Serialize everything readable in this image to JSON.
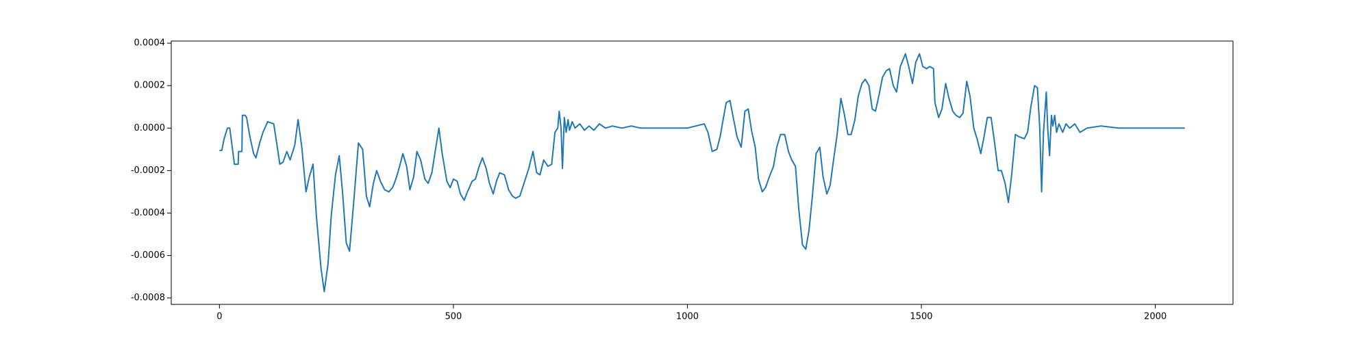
{
  "chart_data": {
    "type": "line",
    "x": [
      0,
      5,
      10,
      17,
      22,
      25,
      32,
      40,
      41,
      48,
      49,
      55,
      58,
      65,
      73,
      78,
      86,
      93,
      103,
      116,
      123,
      129,
      136,
      144,
      151,
      161,
      168,
      176,
      185,
      192,
      200,
      207,
      217,
      224,
      232,
      239,
      248,
      256,
      263,
      271,
      278,
      288,
      297,
      306,
      314,
      321,
      329,
      336,
      344,
      353,
      362,
      370,
      377,
      385,
      392,
      400,
      407,
      415,
      422,
      430,
      439,
      446,
      454,
      461,
      469,
      476,
      486,
      493,
      500,
      508,
      515,
      523,
      530,
      540,
      547,
      555,
      562,
      570,
      577,
      585,
      592,
      599,
      609,
      618,
      626,
      633,
      642,
      661,
      670,
      678,
      685,
      693,
      702,
      710,
      717,
      723,
      726,
      730,
      733,
      737,
      741,
      745,
      748,
      754,
      760,
      770,
      780,
      790,
      800,
      812,
      825,
      840,
      860,
      880,
      900,
      1000,
      1036,
      1044,
      1053,
      1063,
      1070,
      1078,
      1083,
      1091,
      1098,
      1106,
      1115,
      1123,
      1130,
      1137,
      1145,
      1152,
      1160,
      1167,
      1175,
      1184,
      1191,
      1199,
      1208,
      1216,
      1223,
      1231,
      1238,
      1246,
      1253,
      1260,
      1268,
      1275,
      1283,
      1290,
      1298,
      1305,
      1313,
      1320,
      1328,
      1335,
      1343,
      1350,
      1358,
      1365,
      1373,
      1380,
      1388,
      1395,
      1402,
      1410,
      1417,
      1425,
      1432,
      1440,
      1447,
      1455,
      1466,
      1473,
      1481,
      1488,
      1496,
      1503,
      1511,
      1518,
      1526,
      1529,
      1537,
      1544,
      1552,
      1559,
      1567,
      1574,
      1582,
      1589,
      1597,
      1604,
      1612,
      1619,
      1627,
      1634,
      1641,
      1649,
      1656,
      1664,
      1671,
      1679,
      1686,
      1693,
      1701,
      1708,
      1720,
      1727,
      1734,
      1742,
      1748,
      1753,
      1757,
      1761,
      1767,
      1770,
      1774,
      1778,
      1781,
      1785,
      1789,
      1794,
      1802,
      1809,
      1817,
      1828,
      1839,
      1854,
      1884,
      1921,
      2063
    ],
    "series": [
      {
        "color": "#1f77b4",
        "values": [
          -0.000105,
          -0.000105,
          -5e-05,
          0,
          0,
          -5e-05,
          -0.00017,
          -0.00017,
          -0.00011,
          -0.00011,
          6e-05,
          6e-05,
          5e-05,
          -4e-05,
          -0.00012,
          -0.00014,
          -7e-05,
          -2e-05,
          3e-05,
          2e-05,
          -8e-05,
          -0.00017,
          -0.00016,
          -0.00011,
          -0.00015,
          -8e-05,
          4e-05,
          -9e-05,
          -0.0003,
          -0.00023,
          -0.00017,
          -0.00041,
          -0.00066,
          -0.00077,
          -0.00064,
          -0.00041,
          -0.00022,
          -0.00013,
          -0.0003,
          -0.00054,
          -0.00058,
          -0.00032,
          -7e-05,
          -0.0001,
          -0.00032,
          -0.00037,
          -0.00026,
          -0.0002,
          -0.00025,
          -0.00029,
          -0.0003,
          -0.00028,
          -0.00024,
          -0.00018,
          -0.00012,
          -0.00018,
          -0.00029,
          -0.00023,
          -0.00011,
          -0.00015,
          -0.00024,
          -0.00026,
          -0.00021,
          -0.00011,
          0,
          -0.00012,
          -0.00025,
          -0.00028,
          -0.00024,
          -0.00025,
          -0.00031,
          -0.00034,
          -0.0003,
          -0.00025,
          -0.00024,
          -0.00018,
          -0.00014,
          -0.00019,
          -0.00026,
          -0.00031,
          -0.00025,
          -0.00021,
          -0.00022,
          -0.00029,
          -0.00032,
          -0.00033,
          -0.00032,
          -0.00019,
          -0.00011,
          -0.00021,
          -0.00022,
          -0.00015,
          -0.00018,
          -0.00017,
          -2e-05,
          0,
          8e-05,
          0,
          -0.00019,
          5e-05,
          -2e-05,
          4e-05,
          -1e-05,
          3e-05,
          0,
          2e-05,
          -1e-05,
          1e-05,
          -1e-05,
          2e-05,
          0,
          1e-05,
          0,
          1e-05,
          0,
          0,
          2e-05,
          -2e-05,
          -0.00011,
          -0.0001,
          -4e-05,
          6e-05,
          0.00012,
          0.00013,
          5e-05,
          -4e-05,
          -9e-05,
          8e-05,
          9e-05,
          -1e-05,
          -9e-05,
          -0.00024,
          -0.0003,
          -0.00028,
          -0.00023,
          -0.00018,
          -9e-05,
          -3e-05,
          -3e-05,
          -0.00011,
          -0.00015,
          -0.00018,
          -0.00038,
          -0.00055,
          -0.00057,
          -0.00048,
          -0.0003,
          -0.00012,
          -9e-05,
          -0.00023,
          -0.00031,
          -0.00027,
          -0.00014,
          -3e-05,
          0.00014,
          7e-05,
          -3e-05,
          -3e-05,
          4e-05,
          0.00015,
          0.00021,
          0.00023,
          0.0002,
          9e-05,
          8e-05,
          0.00016,
          0.00024,
          0.00027,
          0.00028,
          0.0002,
          0.00017,
          0.00029,
          0.00035,
          0.00029,
          0.00021,
          0.00031,
          0.00035,
          0.00029,
          0.00028,
          0.00029,
          0.00028,
          0.00012,
          5e-05,
          9e-05,
          0.00021,
          0.00014,
          8e-05,
          6e-05,
          5e-05,
          7e-05,
          0.00022,
          0.00015,
          0,
          -5e-05,
          -0.00012,
          -4e-05,
          5e-05,
          5e-05,
          -6e-05,
          -0.0002,
          -0.0002,
          -0.00026,
          -0.00035,
          -0.00022,
          -3e-05,
          -4e-05,
          -5e-05,
          -2e-05,
          0.0001,
          0.0002,
          0.00019,
          0,
          -0.0003,
          -2e-05,
          0.00017,
          0,
          -0.00013,
          6e-05,
          1e-05,
          6e-05,
          -2e-05,
          2e-05,
          -2e-05,
          2e-05,
          0,
          2e-05,
          -2e-05,
          0,
          1e-05,
          0,
          0
        ]
      }
    ],
    "xlim": [
      -103,
      2166
    ],
    "ylim": [
      -0.00083,
      0.00041
    ],
    "xticks": [
      0,
      500,
      1000,
      1500,
      2000
    ],
    "yticks": [
      -0.0008,
      -0.0006,
      -0.0004,
      -0.0002,
      {
        "value": 0,
        "label": "0.0000"
      },
      0.0002,
      0.0004
    ]
  }
}
